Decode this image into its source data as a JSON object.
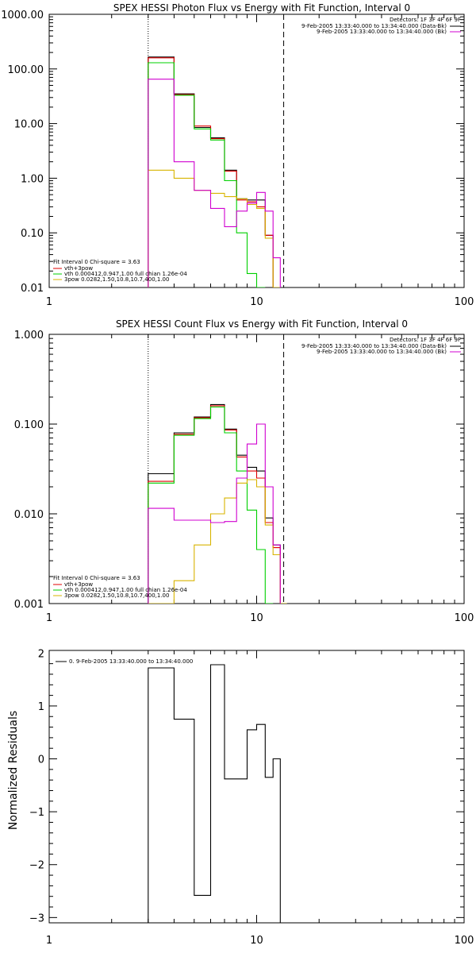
{
  "colors": {
    "black": "#000000",
    "red": "#e00000",
    "magenta": "#d000d0",
    "green": "#00d000",
    "yellow": "#d8b400"
  },
  "chart_data": [
    {
      "type": "line",
      "title": "SPEX HESSI Photon Flux vs Energy with Fit Function, Interval 0",
      "xlog": true,
      "ylog": true,
      "xlim": [
        1,
        100
      ],
      "ylim": [
        0.01,
        1000
      ],
      "x_tick_labels": [
        "1",
        "10",
        "100"
      ],
      "y_tick_labels": [
        "0.01",
        "0.10",
        "1.00",
        "10.00",
        "100.00",
        "1000.00"
      ],
      "detectors_label": "Detectors: 1F 3F 4F 6F 9F",
      "legend_top": [
        {
          "text": "9-Feb-2005 13:33:40.000 to 13:34:40.000 (Data-Bk)",
          "color": "black"
        },
        {
          "text": "9-Feb-2005 13:33:40.000 to 13:34:40.000 (Bk)",
          "color": "magenta"
        }
      ],
      "fit_header": "Fit Interval 0   Chi-square = 3.63",
      "legend_bottom": [
        {
          "text": "vth+3pow",
          "color": "red"
        },
        {
          "text": "vth 0.000412,0.947,1.00  full chian 1.26e-04",
          "color": "green"
        },
        {
          "text": "3pow 0.0282,1.50,10.8,10.7,400,1.00",
          "color": "yellow"
        }
      ],
      "vlines": [
        {
          "x": 3,
          "style": "dotted"
        },
        {
          "x": 13.5,
          "style": "dashed"
        }
      ],
      "edges": [
        3,
        4,
        5,
        6,
        7,
        8,
        9,
        10,
        11,
        12,
        13,
        14,
        15
      ],
      "series": [
        {
          "color": "black",
          "values": [
            165,
            35,
            8.5,
            5.5,
            1.4,
            0.42,
            0.4,
            0.4,
            0.09,
            0.009,
            null,
            null
          ]
        },
        {
          "color": "red",
          "values": [
            160,
            34,
            9,
            5.3,
            1.35,
            0.4,
            0.37,
            0.3,
            0.09,
            0.009,
            null,
            null
          ]
        },
        {
          "color": "green",
          "values": [
            130,
            33,
            8,
            5,
            0.9,
            0.1,
            0.018,
            0.005,
            null,
            null,
            null,
            null
          ]
        },
        {
          "color": "yellow",
          "values": [
            1.4,
            1.0,
            0.6,
            0.53,
            0.46,
            0.42,
            0.33,
            0.28,
            0.08,
            0.008,
            null,
            null
          ]
        },
        {
          "color": "magenta",
          "values": [
            65,
            2.0,
            0.6,
            0.28,
            0.13,
            0.25,
            0.35,
            0.55,
            0.25,
            0.035,
            null,
            null
          ]
        }
      ]
    },
    {
      "type": "line",
      "title": "SPEX HESSI Count Flux vs Energy with Fit Function, Interval 0",
      "xlog": true,
      "ylog": true,
      "xlim": [
        1,
        100
      ],
      "ylim": [
        0.001,
        1
      ],
      "x_tick_labels": [
        "1",
        "10",
        "100"
      ],
      "y_tick_labels": [
        "0.001",
        "0.010",
        "0.100",
        "1.000"
      ],
      "detectors_label": "Detectors: 1F 3F 4F 6F 9F",
      "legend_top": [
        {
          "text": "9-Feb-2005 13:33:40.000 to 13:34:40.000 (Data-Bk)",
          "color": "black"
        },
        {
          "text": "9-Feb-2005 13:33:40.000 to 13:34:40.000 (Bk)",
          "color": "magenta"
        }
      ],
      "fit_header": "Fit Interval 0   Chi-square = 3.63",
      "legend_bottom": [
        {
          "text": "vth+3pow",
          "color": "red"
        },
        {
          "text": "vth 0.000412,0.947,1.00  full chian 1.26e-04",
          "color": "green"
        },
        {
          "text": "3pow 0.0282,1.50,10.8,10.7,400,1.00",
          "color": "yellow"
        }
      ],
      "vlines": [
        {
          "x": 3,
          "style": "dotted"
        },
        {
          "x": 13.5,
          "style": "dashed"
        }
      ],
      "edges": [
        3,
        4,
        5,
        6,
        7,
        8,
        9,
        10,
        11,
        12,
        13,
        14,
        15
      ],
      "series": [
        {
          "color": "black",
          "values": [
            0.028,
            0.08,
            0.12,
            0.165,
            0.088,
            0.045,
            0.033,
            0.03,
            0.009,
            0.0045,
            null,
            null
          ]
        },
        {
          "color": "red",
          "values": [
            0.023,
            0.077,
            0.118,
            0.16,
            0.086,
            0.043,
            0.03,
            0.025,
            0.008,
            0.0042,
            null,
            null
          ]
        },
        {
          "color": "green",
          "values": [
            0.022,
            0.075,
            0.115,
            0.155,
            0.08,
            0.03,
            0.011,
            0.004,
            0.001,
            null,
            null,
            null
          ]
        },
        {
          "color": "yellow",
          "values": [
            0.0005,
            0.0018,
            0.0045,
            0.01,
            0.015,
            0.022,
            0.024,
            0.02,
            0.0075,
            0.0035,
            0.001,
            null
          ]
        },
        {
          "color": "magenta",
          "values": [
            0.0115,
            0.0085,
            0.0085,
            0.008,
            0.0082,
            0.025,
            0.06,
            0.1,
            0.02,
            0.0045,
            null,
            null
          ]
        }
      ]
    },
    {
      "type": "line",
      "title": "",
      "xlog": true,
      "ylog": false,
      "xlim": [
        1,
        100
      ],
      "ylim": [
        -3.1,
        2.05
      ],
      "ylabel": "Normalized Residuals",
      "x_tick_labels": [
        "1",
        "10",
        "100"
      ],
      "y_tick_labels": [
        "2",
        "1",
        "0",
        "−1",
        "−2",
        "−3"
      ],
      "legend_top": [
        {
          "text": "0. 9-Feb-2005 13:33:40.000 to 13:34:40.000",
          "color": "black"
        }
      ],
      "edges": [
        3,
        4,
        5,
        6,
        7,
        8,
        9,
        10,
        11,
        12,
        13
      ],
      "series": [
        {
          "color": "black",
          "values": [
            1.72,
            0.75,
            -2.58,
            1.78,
            -0.38,
            -0.38,
            0.55,
            0.65,
            -0.35,
            0.0
          ]
        }
      ]
    }
  ]
}
